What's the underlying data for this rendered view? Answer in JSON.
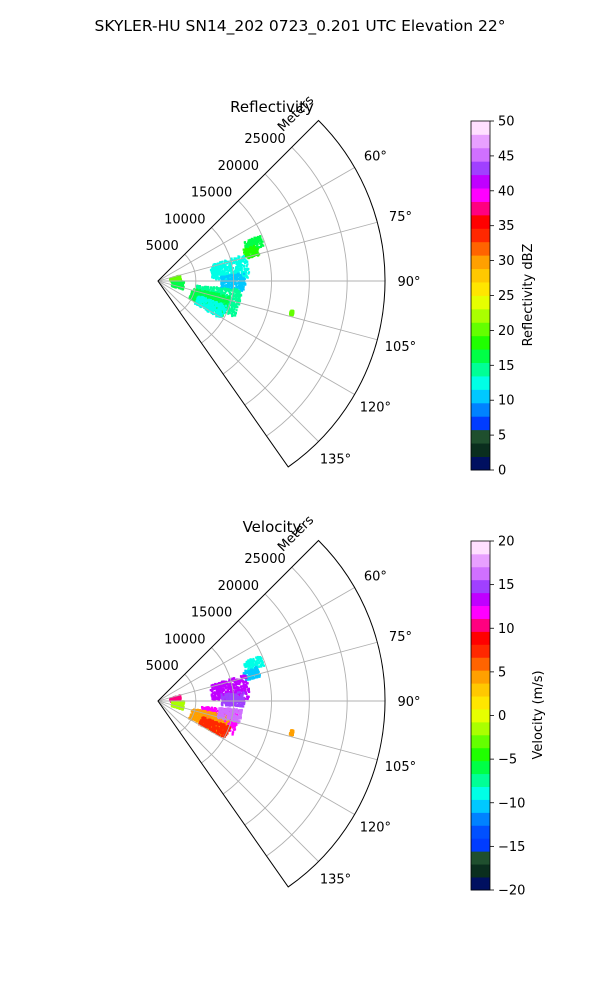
{
  "title": "SKYLER-HU  SN14_202  0723_0.201 UTC Elevation 22°",
  "chart_data": [
    {
      "type": "polar-sector",
      "title": "Reflectivity",
      "range_label": "Meters",
      "range_ticks": [
        5000,
        10000,
        15000,
        20000,
        25000
      ],
      "range_max_m": 30000,
      "azimuth_ticks": [
        "60°",
        "75°",
        "90°",
        "105°",
        "120°",
        "135°"
      ],
      "azimuth_tick_values": [
        60,
        75,
        90,
        105,
        120,
        135
      ],
      "azimuth_range": [
        45,
        145
      ],
      "colorbar": {
        "label": "Reflectivity dBZ",
        "min": 0,
        "max": 50,
        "ticks": [
          "0",
          "5",
          "10",
          "15",
          "20",
          "25",
          "30",
          "35",
          "40",
          "45",
          "50"
        ],
        "colors": [
          "#001060",
          "#0a2e1e",
          "#1f4f2e",
          "#003cff",
          "#0082ff",
          "#00c8ff",
          "#00ffe6",
          "#00ff96",
          "#00ff46",
          "#20ff00",
          "#64ff00",
          "#aaff00",
          "#e6ff00",
          "#ffe600",
          "#ffc800",
          "#ffa000",
          "#ff6400",
          "#ff2800",
          "#ff0000",
          "#ff0080",
          "#ff00ff",
          "#c000ff",
          "#a040ff",
          "#d070ff",
          "#e8a0ff",
          "#ffe0ff"
        ]
      },
      "echo_clusters": [
        {
          "az": 68,
          "r_m": 13500,
          "spread_az": 3,
          "spread_r": 1200,
          "color": "#00ff46"
        },
        {
          "az": 72,
          "r_m": 12800,
          "spread_az": 3,
          "spread_r": 1000,
          "color": "#20ff00"
        },
        {
          "az": 80,
          "r_m": 9500,
          "spread_az": 8,
          "spread_r": 2500,
          "color": "#00ffe6"
        },
        {
          "az": 90,
          "r_m": 9800,
          "spread_az": 6,
          "spread_r": 1600,
          "color": "#00c8ff"
        },
        {
          "az": 105,
          "r_m": 8000,
          "spread_az": 10,
          "spread_r": 3000,
          "color": "#00ff96"
        },
        {
          "az": 110,
          "r_m": 7000,
          "spread_az": 9,
          "spread_r": 2500,
          "color": "#00ff46"
        },
        {
          "az": 115,
          "r_m": 7500,
          "spread_az": 6,
          "spread_r": 2000,
          "color": "#00ffe6"
        },
        {
          "az": 80,
          "r_m": 2200,
          "spread_az": 8,
          "spread_r": 700,
          "color": "#64ff00"
        },
        {
          "az": 98,
          "r_m": 2500,
          "spread_az": 10,
          "spread_r": 800,
          "color": "#00ff46"
        },
        {
          "az": 103,
          "r_m": 18000,
          "spread_az": 1,
          "spread_r": 200,
          "color": "#64ff00"
        }
      ]
    },
    {
      "type": "polar-sector",
      "title": "Velocity",
      "range_label": "Meters",
      "range_ticks": [
        5000,
        10000,
        15000,
        20000,
        25000
      ],
      "range_max_m": 30000,
      "azimuth_ticks": [
        "60°",
        "75°",
        "90°",
        "105°",
        "120°",
        "135°"
      ],
      "azimuth_tick_values": [
        60,
        75,
        90,
        105,
        120,
        135
      ],
      "azimuth_range": [
        45,
        145
      ],
      "colorbar": {
        "label": "Velocity (m/s)",
        "min": -20,
        "max": 20,
        "ticks": [
          "−20",
          "−15",
          "−10",
          "−5",
          "0",
          "5",
          "10",
          "15",
          "20"
        ],
        "colors": [
          "#001060",
          "#0a2e1e",
          "#1f4f2e",
          "#003cff",
          "#0050ff",
          "#0082ff",
          "#00c8ff",
          "#00ffe6",
          "#00ff96",
          "#00ff46",
          "#20ff00",
          "#64ff00",
          "#aaff00",
          "#e6ff00",
          "#ffe600",
          "#ffc800",
          "#ffa000",
          "#ff6400",
          "#ff2800",
          "#ff0000",
          "#ff0080",
          "#ff00ff",
          "#c000ff",
          "#a040ff",
          "#d070ff",
          "#e8a0ff",
          "#ffe0ff"
        ]
      },
      "echo_clusters": [
        {
          "az": 68,
          "r_m": 13500,
          "spread_az": 3,
          "spread_r": 1200,
          "color": "#00ffe6"
        },
        {
          "az": 73,
          "r_m": 12800,
          "spread_az": 3,
          "spread_r": 1000,
          "color": "#00c8ff"
        },
        {
          "az": 80,
          "r_m": 9500,
          "spread_az": 8,
          "spread_r": 2500,
          "color": "#c000ff"
        },
        {
          "az": 88,
          "r_m": 9800,
          "spread_az": 5,
          "spread_r": 1500,
          "color": "#a040ff"
        },
        {
          "az": 105,
          "r_m": 8200,
          "spread_az": 9,
          "spread_r": 2500,
          "color": "#ff00ff"
        },
        {
          "az": 110,
          "r_m": 7000,
          "spread_az": 9,
          "spread_r": 2500,
          "color": "#ffa000"
        },
        {
          "az": 114,
          "r_m": 8000,
          "spread_az": 5,
          "spread_r": 2000,
          "color": "#ff2800"
        },
        {
          "az": 100,
          "r_m": 9500,
          "spread_az": 5,
          "spread_r": 1500,
          "color": "#d070ff"
        },
        {
          "az": 80,
          "r_m": 2200,
          "spread_az": 8,
          "spread_r": 700,
          "color": "#ff0080"
        },
        {
          "az": 98,
          "r_m": 2500,
          "spread_az": 10,
          "spread_r": 800,
          "color": "#aaff00"
        },
        {
          "az": 103,
          "r_m": 18000,
          "spread_az": 1,
          "spread_r": 200,
          "color": "#ffa000"
        }
      ]
    }
  ]
}
